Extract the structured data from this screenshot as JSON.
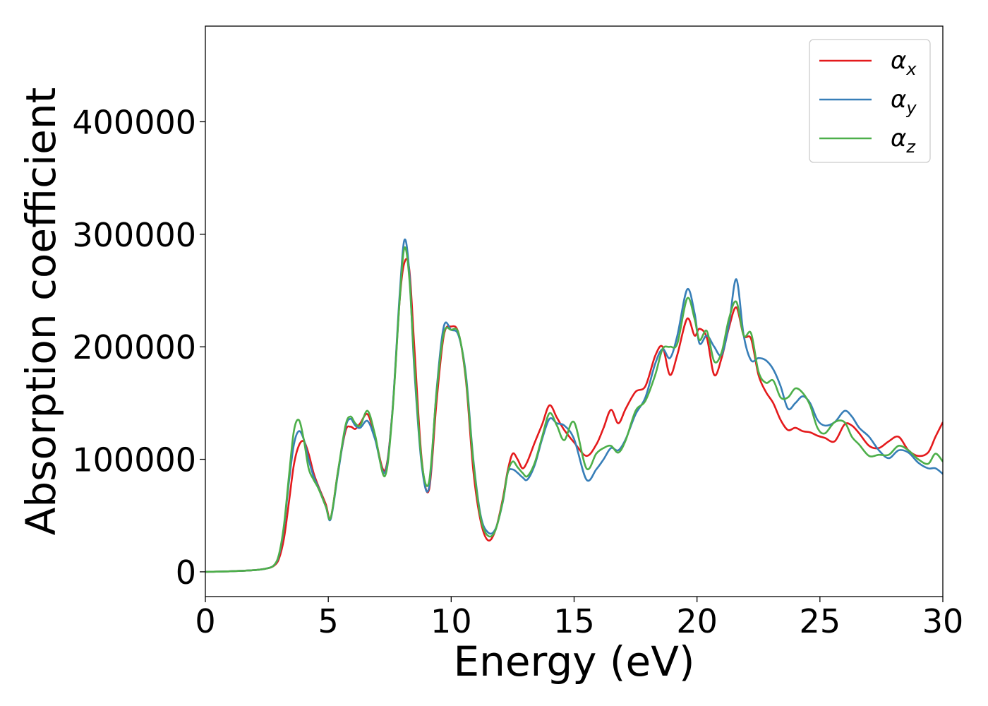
{
  "chart_data": {
    "type": "line",
    "xlabel": "Energy (eV)",
    "ylabel": "Absorption coefficient",
    "xlim": [
      0,
      30
    ],
    "ylim": [
      -22000,
      485000
    ],
    "xticks": [
      0,
      5,
      10,
      15,
      20,
      25,
      30
    ],
    "yticks": [
      0,
      100000,
      200000,
      300000,
      400000
    ],
    "grid": false,
    "legend_position": "top-right",
    "series": [
      {
        "name": "αx",
        "symbol": "α",
        "subscript": "x",
        "color": "#e41a1c",
        "x": [
          0,
          1,
          2,
          2.5,
          2.8,
          3.0,
          3.2,
          3.4,
          3.6,
          3.8,
          4.0,
          4.2,
          4.4,
          4.6,
          4.9,
          5.1,
          5.4,
          5.7,
          5.9,
          6.1,
          6.3,
          6.6,
          6.9,
          7.3,
          7.6,
          7.9,
          8.1,
          8.3,
          8.5,
          8.8,
          9.1,
          9.4,
          9.7,
          10.0,
          10.3,
          10.6,
          10.9,
          11.2,
          11.5,
          11.8,
          12.1,
          12.3,
          12.5,
          12.7,
          12.9,
          13.1,
          13.4,
          13.7,
          14.0,
          14.3,
          14.6,
          15.0,
          15.5,
          15.9,
          16.2,
          16.5,
          16.8,
          17.1,
          17.5,
          17.9,
          18.3,
          18.6,
          18.9,
          19.2,
          19.6,
          19.9,
          20.1,
          20.4,
          20.7,
          21.0,
          21.3,
          21.6,
          21.9,
          22.2,
          22.5,
          22.8,
          23.1,
          23.4,
          23.7,
          24.0,
          24.3,
          24.6,
          24.9,
          25.2,
          25.6,
          26.0,
          26.3,
          26.6,
          27.0,
          27.4,
          27.8,
          28.2,
          28.6,
          29.0,
          29.4,
          29.7,
          30.0
        ],
        "y": [
          0,
          500,
          1500,
          3000,
          5500,
          12000,
          30000,
          62000,
          95000,
          112000,
          116000,
          105000,
          88000,
          76000,
          60000,
          48000,
          90000,
          125000,
          129000,
          127000,
          132000,
          140000,
          120000,
          90000,
          140000,
          240000,
          275000,
          268000,
          200000,
          100000,
          73000,
          150000,
          210000,
          218000,
          212000,
          170000,
          90000,
          45000,
          28000,
          37000,
          65000,
          90000,
          105000,
          100000,
          92000,
          98000,
          115000,
          131000,
          148000,
          137000,
          126000,
          115000,
          103000,
          113000,
          128000,
          144000,
          132000,
          145000,
          160000,
          165000,
          192000,
          200000,
          175000,
          193000,
          225000,
          210000,
          216000,
          208000,
          175000,
          190000,
          217000,
          235000,
          210000,
          207000,
          175000,
          160000,
          150000,
          135000,
          126000,
          128000,
          125000,
          124000,
          121000,
          119000,
          116000,
          131000,
          130000,
          123000,
          112000,
          110000,
          116000,
          120000,
          108000,
          103000,
          106000,
          120000,
          133000
        ]
      },
      {
        "name": "αy",
        "symbol": "α",
        "subscript": "y",
        "color": "#377eb8",
        "x": [
          0,
          1,
          2,
          2.5,
          2.8,
          3.0,
          3.2,
          3.4,
          3.6,
          3.8,
          4.0,
          4.2,
          4.4,
          4.6,
          4.9,
          5.1,
          5.4,
          5.7,
          5.9,
          6.1,
          6.3,
          6.6,
          6.9,
          7.3,
          7.6,
          7.9,
          8.1,
          8.3,
          8.5,
          8.8,
          9.1,
          9.4,
          9.7,
          10.0,
          10.3,
          10.6,
          10.9,
          11.2,
          11.5,
          11.8,
          12.1,
          12.3,
          12.5,
          12.7,
          12.9,
          13.1,
          13.4,
          13.7,
          14.0,
          14.3,
          14.6,
          15.0,
          15.5,
          15.9,
          16.2,
          16.5,
          16.8,
          17.1,
          17.5,
          17.9,
          18.3,
          18.6,
          18.9,
          19.2,
          19.6,
          19.9,
          20.1,
          20.4,
          20.7,
          21.0,
          21.3,
          21.6,
          21.9,
          22.2,
          22.5,
          22.8,
          23.1,
          23.4,
          23.7,
          24.0,
          24.3,
          24.6,
          24.9,
          25.2,
          25.6,
          26.0,
          26.3,
          26.6,
          27.0,
          27.4,
          27.8,
          28.2,
          28.6,
          29.0,
          29.4,
          29.7,
          30.0
        ],
        "y": [
          0,
          500,
          1500,
          3000,
          6000,
          15000,
          40000,
          80000,
          113000,
          125000,
          118000,
          100000,
          85000,
          75000,
          58000,
          47000,
          88000,
          128000,
          136000,
          130000,
          128000,
          134000,
          118000,
          88000,
          140000,
          245000,
          295000,
          265000,
          180000,
          95000,
          75000,
          160000,
          218000,
          215000,
          210000,
          175000,
          100000,
          50000,
          35000,
          38000,
          62000,
          88000,
          91000,
          88000,
          84000,
          82000,
          95000,
          118000,
          136000,
          132000,
          130000,
          118000,
          82000,
          91000,
          100000,
          110000,
          108000,
          118000,
          140000,
          155000,
          185000,
          198000,
          190000,
          210000,
          251000,
          230000,
          203000,
          210000,
          200000,
          193000,
          220000,
          260000,
          210000,
          188000,
          190000,
          188000,
          180000,
          165000,
          145000,
          150000,
          156000,
          150000,
          135000,
          130000,
          133000,
          143000,
          138000,
          128000,
          120000,
          108000,
          101000,
          108000,
          106000,
          97000,
          92000,
          92000,
          87000
        ]
      },
      {
        "name": "αz",
        "symbol": "α",
        "subscript": "z",
        "color": "#4daf4a",
        "x": [
          0,
          1,
          2,
          2.5,
          2.8,
          3.0,
          3.2,
          3.4,
          3.6,
          3.8,
          4.0,
          4.2,
          4.4,
          4.6,
          4.9,
          5.1,
          5.4,
          5.7,
          5.9,
          6.1,
          6.3,
          6.6,
          6.9,
          7.3,
          7.6,
          7.9,
          8.1,
          8.3,
          8.5,
          8.8,
          9.1,
          9.4,
          9.7,
          10.0,
          10.3,
          10.6,
          10.9,
          11.2,
          11.5,
          11.8,
          12.1,
          12.3,
          12.5,
          12.7,
          12.9,
          13.1,
          13.4,
          13.7,
          14.0,
          14.3,
          14.6,
          15.0,
          15.5,
          15.9,
          16.2,
          16.5,
          16.8,
          17.1,
          17.5,
          17.9,
          18.3,
          18.6,
          18.9,
          19.2,
          19.6,
          19.9,
          20.1,
          20.4,
          20.7,
          21.0,
          21.3,
          21.6,
          21.9,
          22.2,
          22.5,
          22.8,
          23.1,
          23.4,
          23.7,
          24.0,
          24.3,
          24.6,
          24.9,
          25.2,
          25.6,
          26.0,
          26.3,
          26.6,
          27.0,
          27.4,
          27.8,
          28.2,
          28.6,
          29.0,
          29.4,
          29.7,
          30.0
        ],
        "y": [
          0,
          500,
          1500,
          3000,
          6000,
          16000,
          42000,
          85000,
          125000,
          135000,
          118000,
          92000,
          82000,
          74000,
          58000,
          48000,
          90000,
          130000,
          138000,
          132000,
          130000,
          143000,
          122000,
          85000,
          138000,
          240000,
          288000,
          260000,
          185000,
          98000,
          80000,
          158000,
          212000,
          215000,
          212000,
          172000,
          98000,
          48000,
          32000,
          37000,
          63000,
          88000,
          98000,
          93000,
          88000,
          85000,
          97000,
          120000,
          141000,
          130000,
          117000,
          133000,
          92000,
          105000,
          110000,
          112000,
          106000,
          117000,
          143000,
          152000,
          175000,
          198000,
          200000,
          203000,
          243000,
          225000,
          206000,
          214000,
          187000,
          195000,
          225000,
          240000,
          210000,
          212000,
          178000,
          168000,
          170000,
          155000,
          155000,
          163000,
          159000,
          148000,
          128000,
          123000,
          133000,
          133000,
          120000,
          113000,
          103000,
          104000,
          104000,
          112000,
          108000,
          100000,
          96000,
          105000,
          98000
        ]
      }
    ]
  }
}
